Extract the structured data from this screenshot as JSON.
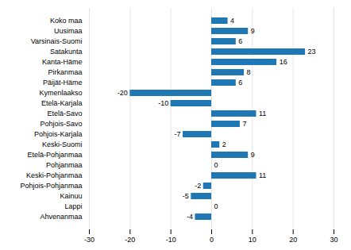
{
  "chart_data": {
    "type": "bar",
    "orientation": "horizontal",
    "categories": [
      "Koko maa",
      "Uusimaa",
      "Varsinais-Suomi",
      "Satakunta",
      "Kanta-Häme",
      "Pirkanmaa",
      "Päijät-Häme",
      "Kymenlaakso",
      "Etelä-Karjala",
      "Etelä-Savo",
      "Pohjois-Savo",
      "Pohjois-Karjala",
      "Keski-Suomi",
      "Etelä-Pohjanmaa",
      "Pohjanmaa",
      "Keski-Pohjanmaa",
      "Pohjois-Pohjanmaa",
      "Kainuu",
      "Lappi",
      "Ahvenanmaa"
    ],
    "values": [
      4,
      9,
      6,
      23,
      16,
      8,
      6,
      -20,
      -10,
      11,
      7,
      -7,
      2,
      9,
      0,
      11,
      -2,
      -5,
      0,
      -4
    ],
    "color": "#1f77b4",
    "xlim": [
      -30,
      30
    ],
    "xticks": [
      -30,
      -20,
      -10,
      0,
      10,
      20,
      30
    ],
    "grid": true,
    "data_labels": true
  }
}
